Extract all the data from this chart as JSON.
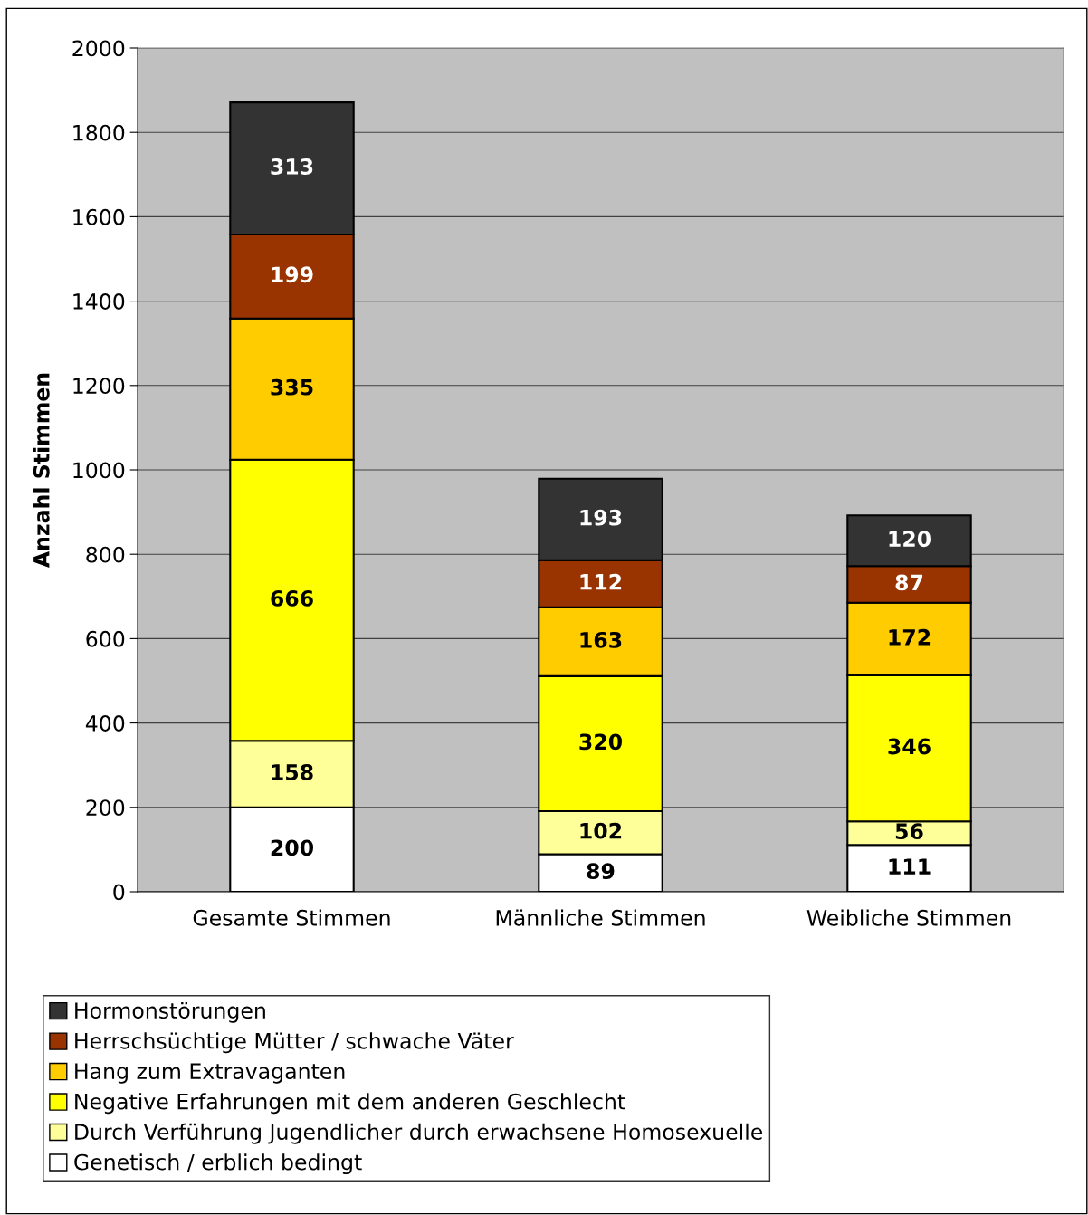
{
  "chart_data": {
    "type": "bar",
    "stacked": true,
    "ylabel": "Anzahl Stimmen",
    "categories": [
      "Gesamte Stimmen",
      "Männliche Stimmen",
      "Weibliche Stimmen"
    ],
    "series": [
      {
        "name": "Genetisch / erblich bedingt",
        "color": "#ffffff",
        "values": [
          200,
          89,
          111
        ]
      },
      {
        "name": "Durch Verführung Jugendlicher durch erwachsene Homosexuelle",
        "color": "#ffff99",
        "values": [
          158,
          102,
          56
        ]
      },
      {
        "name": "Negative Erfahrungen mit dem anderen Geschlecht",
        "color": "#ffff00",
        "values": [
          666,
          320,
          346
        ]
      },
      {
        "name": "Hang zum Extravaganten",
        "color": "#ffcc00",
        "values": [
          335,
          163,
          172
        ]
      },
      {
        "name": "Herrschsüchtige Mütter / schwache Väter",
        "color": "#993300",
        "values": [
          199,
          112,
          87
        ]
      },
      {
        "name": "Hormonstörungen",
        "color": "#333333",
        "values": [
          313,
          193,
          120
        ]
      }
    ],
    "ylim": [
      0,
      2000
    ],
    "yticks": [
      0,
      200,
      400,
      600,
      800,
      1000,
      1200,
      1400,
      1600,
      1800,
      2000
    ],
    "grid": "y",
    "legend": "bottom",
    "data_labels": true
  }
}
